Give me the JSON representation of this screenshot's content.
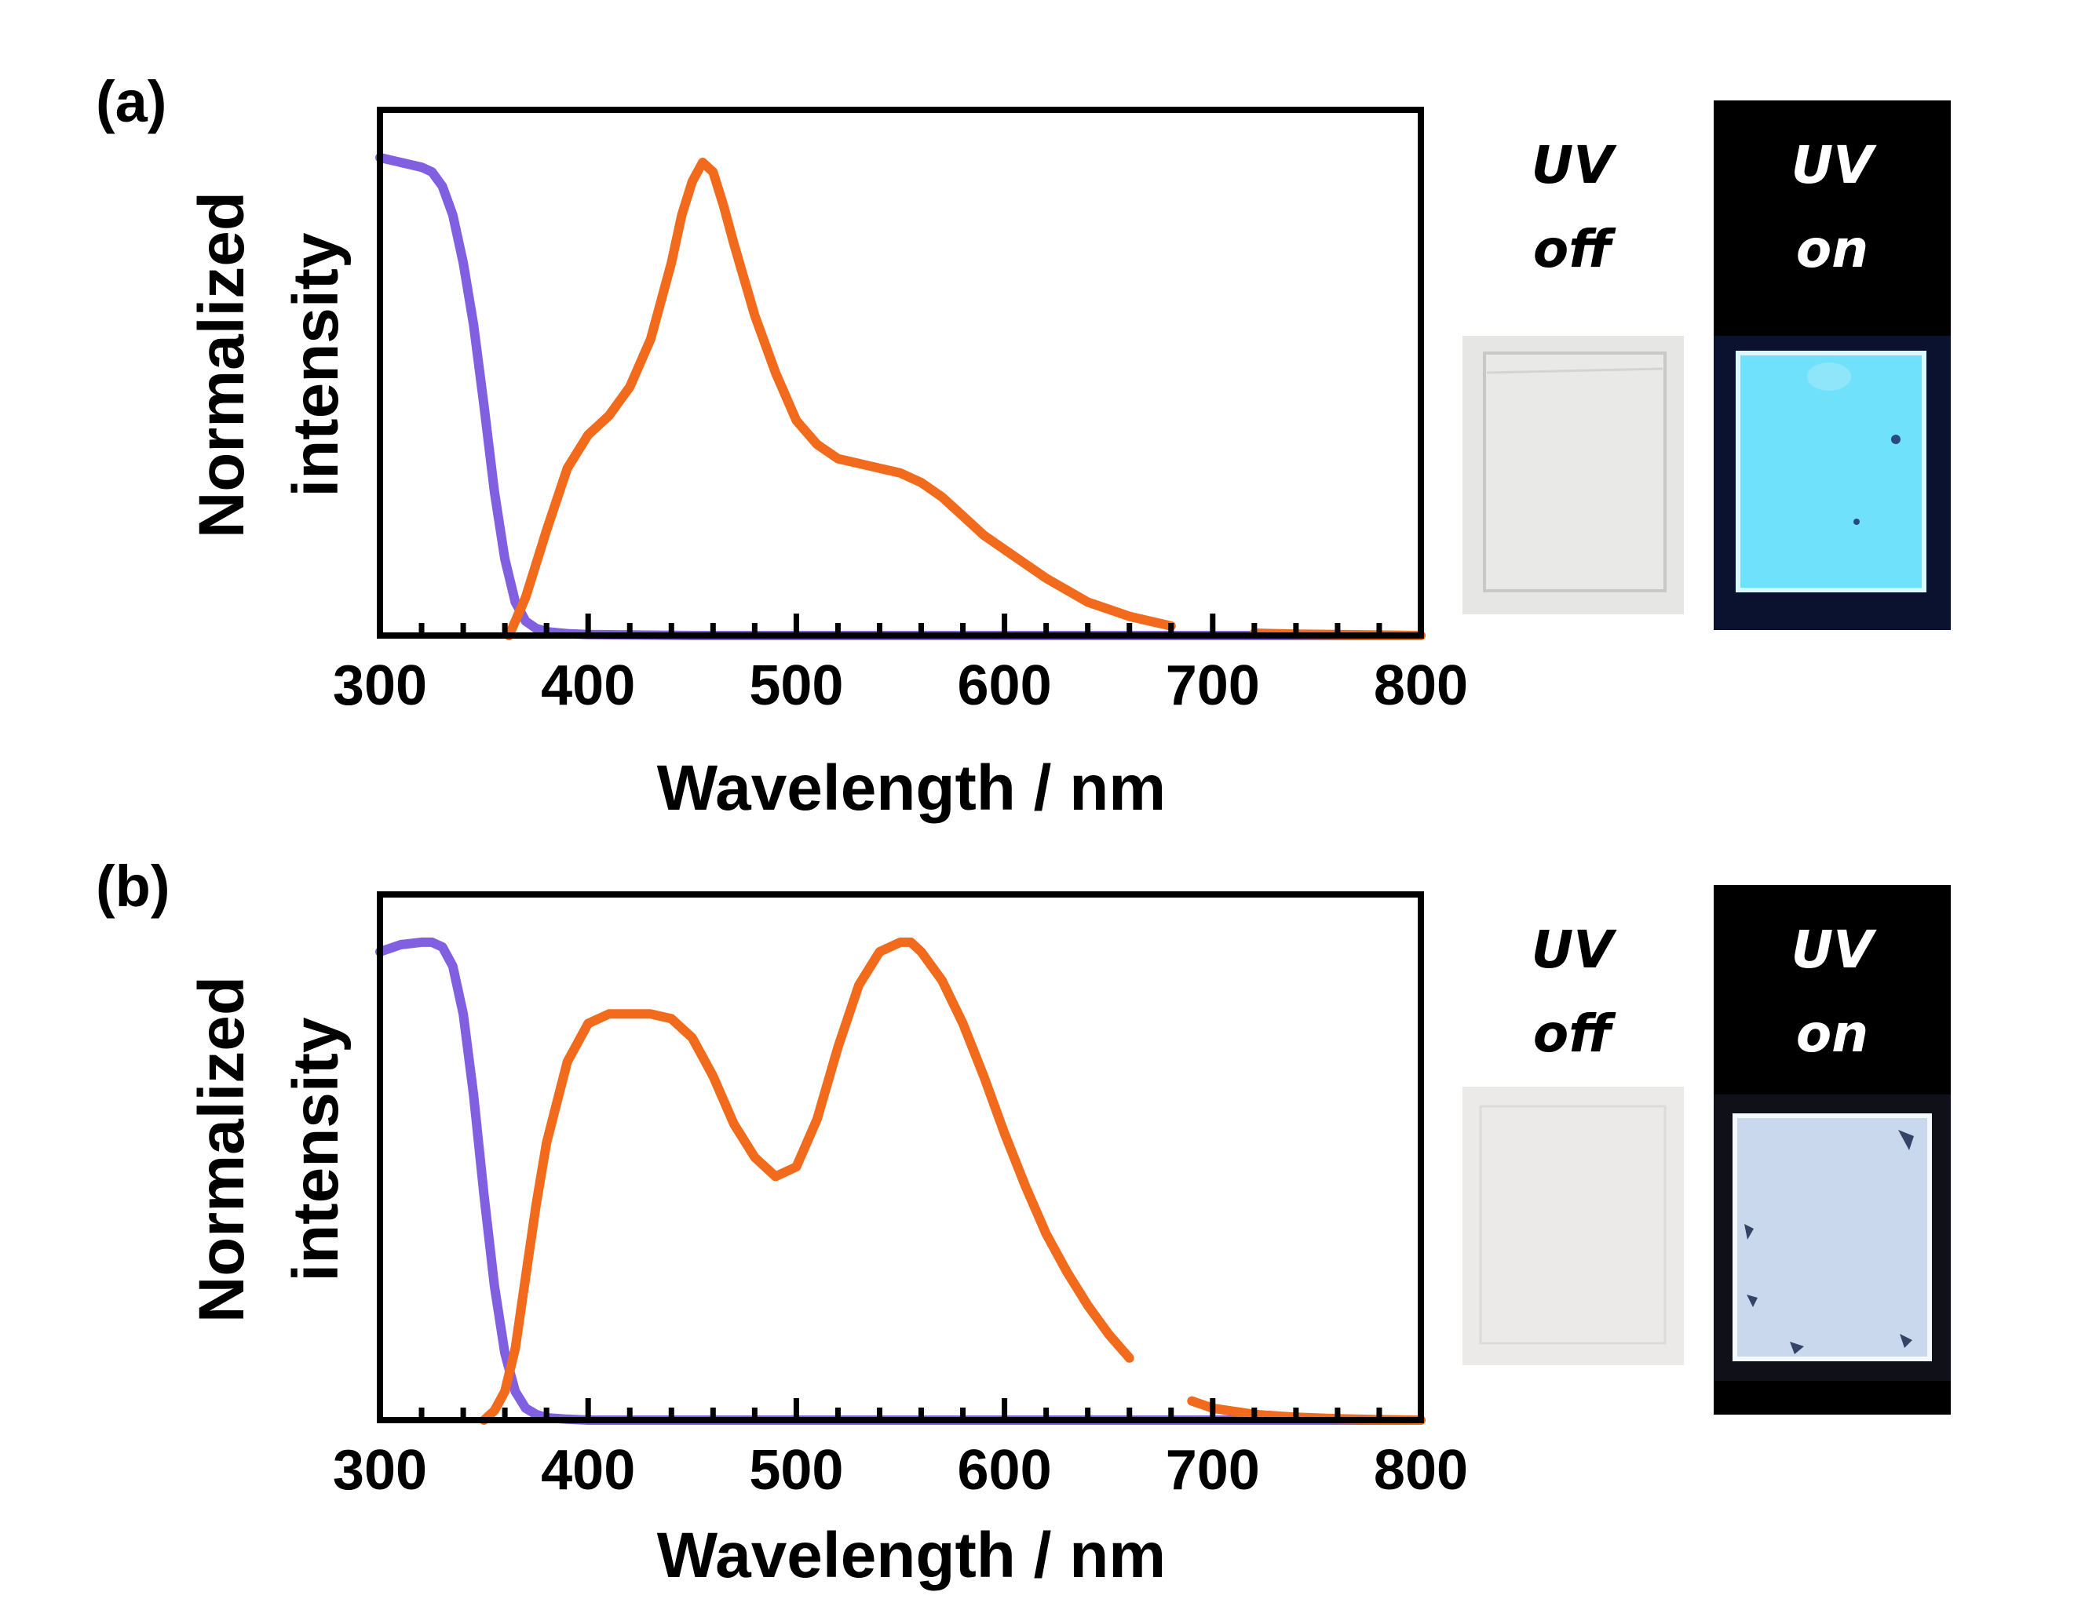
{
  "chart_data": [
    {
      "type": "line",
      "panel_label": "(a)",
      "xlabel": "Wavelength / nm",
      "ylabel": "Normalized intensity",
      "xlim": [
        300,
        800
      ],
      "ylim": [
        0,
        1.1
      ],
      "xticks": [
        300,
        400,
        500,
        600,
        700,
        800
      ],
      "minor_tick_step": 20,
      "yticks": [],
      "grid": false,
      "legend": "none",
      "series": [
        {
          "color": "#8060e0",
          "x": [
            300,
            310,
            320,
            325,
            330,
            335,
            340,
            345,
            350,
            355,
            360,
            365,
            370,
            375,
            380,
            390,
            400,
            450,
            500,
            600,
            700,
            800
          ],
          "y": [
            1.0,
            0.99,
            0.98,
            0.97,
            0.94,
            0.88,
            0.78,
            0.65,
            0.48,
            0.3,
            0.16,
            0.07,
            0.03,
            0.015,
            0.008,
            0.004,
            0.002,
            0.0,
            0.0,
            0.0,
            0.0,
            0.0
          ]
        },
        {
          "color": "#f26a1b",
          "x": [
            362,
            370,
            380,
            390,
            400,
            410,
            420,
            430,
            440,
            445,
            450,
            455,
            460,
            465,
            470,
            480,
            490,
            500,
            510,
            520,
            530,
            540,
            550,
            560,
            570,
            580,
            590,
            600,
            620,
            640,
            660,
            680,
            700,
            720,
            740,
            760,
            780,
            800
          ],
          "y": [
            0.0,
            0.08,
            0.22,
            0.35,
            0.42,
            0.46,
            0.52,
            0.62,
            0.78,
            0.88,
            0.95,
            0.99,
            0.97,
            0.9,
            0.82,
            0.67,
            0.55,
            0.45,
            0.4,
            0.37,
            0.36,
            0.35,
            0.34,
            0.32,
            0.29,
            0.25,
            0.21,
            0.18,
            0.12,
            0.07,
            0.04,
            0.02,
            0.01,
            0.005,
            0.003,
            0.002,
            0.001,
            0.0
          ],
          "gaps": [
            [
              693,
              713
            ]
          ]
        }
      ],
      "photo_labels": {
        "off": "UV off",
        "on": "UV on"
      },
      "photo_colors": {
        "off_background": "#e6e6e4",
        "on_background": "#000000",
        "on_glow": "#6fe1fb"
      }
    },
    {
      "type": "line",
      "panel_label": "(b)",
      "xlabel": "Wavelength / nm",
      "ylabel": "Normalized intensity",
      "xlim": [
        300,
        800
      ],
      "ylim": [
        0,
        1.1
      ],
      "xticks": [
        300,
        400,
        500,
        600,
        700,
        800
      ],
      "minor_tick_step": 20,
      "yticks": [],
      "grid": false,
      "legend": "none",
      "series": [
        {
          "color": "#8060e0",
          "x": [
            300,
            310,
            320,
            325,
            330,
            335,
            340,
            345,
            350,
            355,
            360,
            365,
            370,
            375,
            380,
            390,
            400,
            450,
            500,
            600,
            700,
            800
          ],
          "y": [
            0.98,
            0.995,
            1.0,
            1.0,
            0.99,
            0.95,
            0.85,
            0.68,
            0.47,
            0.28,
            0.14,
            0.06,
            0.025,
            0.012,
            0.005,
            0.002,
            0.0,
            0.0,
            0.0,
            0.0,
            0.0,
            0.0
          ]
        },
        {
          "color": "#f26a1b",
          "x": [
            350,
            355,
            360,
            365,
            370,
            375,
            380,
            390,
            400,
            410,
            420,
            430,
            440,
            450,
            460,
            470,
            480,
            490,
            500,
            510,
            520,
            530,
            540,
            550,
            555,
            560,
            570,
            580,
            590,
            600,
            610,
            620,
            630,
            640,
            650,
            660,
            670,
            680,
            690,
            700,
            720,
            740,
            760,
            780,
            800
          ],
          "y": [
            0.0,
            0.02,
            0.06,
            0.15,
            0.3,
            0.45,
            0.58,
            0.75,
            0.83,
            0.85,
            0.85,
            0.85,
            0.84,
            0.8,
            0.72,
            0.62,
            0.55,
            0.51,
            0.53,
            0.63,
            0.78,
            0.91,
            0.98,
            1.0,
            1.0,
            0.98,
            0.92,
            0.83,
            0.72,
            0.6,
            0.49,
            0.39,
            0.31,
            0.24,
            0.18,
            0.13,
            0.09,
            0.06,
            0.04,
            0.025,
            0.012,
            0.006,
            0.003,
            0.001,
            0.0
          ],
          "gaps": [
            [
              665,
              688
            ]
          ]
        }
      ],
      "photo_labels": {
        "off": "UV off",
        "on": "UV on"
      },
      "photo_colors": {
        "off_background": "#ebeae8",
        "on_background": "#000000",
        "on_glow": "#c9d8ec"
      }
    }
  ]
}
